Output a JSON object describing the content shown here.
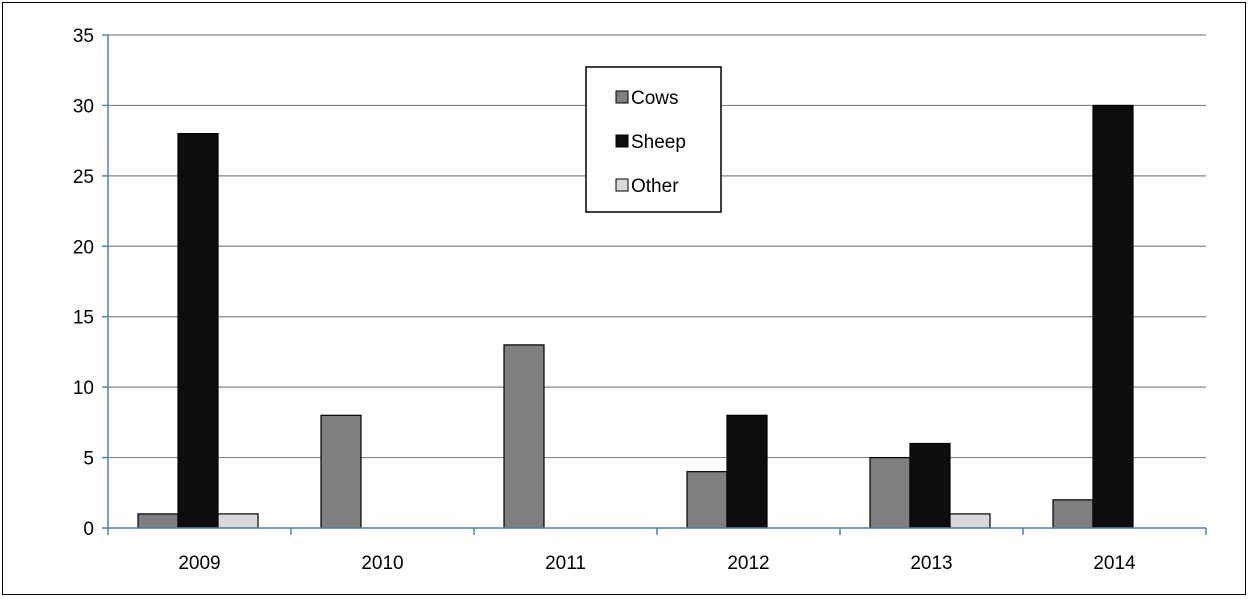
{
  "chart_data": {
    "type": "bar",
    "title": "",
    "xlabel": "",
    "ylabel": "",
    "categories": [
      "2009",
      "2010",
      "2011",
      "2012",
      "2013",
      "2014"
    ],
    "series": [
      {
        "name": "Cows",
        "color": "#7f7f7f",
        "values": [
          1,
          8,
          13,
          4,
          5,
          2
        ]
      },
      {
        "name": "Sheep",
        "color": "#0d0d0d",
        "values": [
          28,
          0,
          0,
          8,
          6,
          30
        ]
      },
      {
        "name": "Other",
        "color": "#d9d9d9",
        "values": [
          1,
          0,
          0,
          0,
          1,
          0
        ]
      }
    ],
    "ylim": [
      0,
      35
    ],
    "yticks": [
      0,
      5,
      10,
      15,
      20,
      25,
      30,
      35
    ],
    "ytick_labels": [
      "0",
      "5",
      "10",
      "15",
      "20",
      "25",
      "30",
      "35"
    ],
    "grid": true,
    "gridline_color": "#868686",
    "axis_color": "#4f81bd",
    "legend_position": "top-center"
  }
}
